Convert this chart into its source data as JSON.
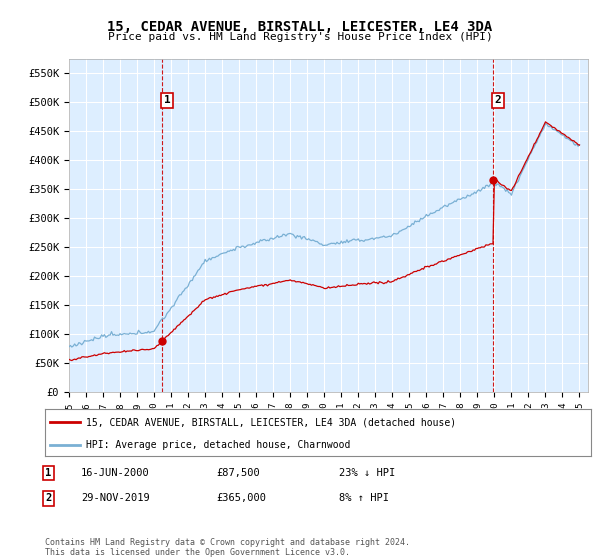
{
  "title": "15, CEDAR AVENUE, BIRSTALL, LEICESTER, LE4 3DA",
  "subtitle": "Price paid vs. HM Land Registry's House Price Index (HPI)",
  "ylim": [
    0,
    575000
  ],
  "yticks": [
    0,
    50000,
    100000,
    150000,
    200000,
    250000,
    300000,
    350000,
    400000,
    450000,
    500000,
    550000
  ],
  "ytick_labels": [
    "£0",
    "£50K",
    "£100K",
    "£150K",
    "£200K",
    "£250K",
    "£300K",
    "£350K",
    "£400K",
    "£450K",
    "£500K",
    "£550K"
  ],
  "background_color": "#ffffff",
  "plot_bg_color": "#ddeeff",
  "grid_color": "#ffffff",
  "transaction1_date": 2000.46,
  "transaction1_price": 87500,
  "transaction1_label": "1",
  "transaction2_date": 2019.92,
  "transaction2_price": 365000,
  "transaction2_label": "2",
  "legend_line1": "15, CEDAR AVENUE, BIRSTALL, LEICESTER, LE4 3DA (detached house)",
  "legend_line2": "HPI: Average price, detached house, Charnwood",
  "annotation1_num": "1",
  "annotation1_date": "16-JUN-2000",
  "annotation1_price": "£87,500",
  "annotation1_hpi": "23% ↓ HPI",
  "annotation2_num": "2",
  "annotation2_date": "29-NOV-2019",
  "annotation2_price": "£365,000",
  "annotation2_hpi": "8% ↑ HPI",
  "footer": "Contains HM Land Registry data © Crown copyright and database right 2024.\nThis data is licensed under the Open Government Licence v3.0.",
  "line_color_red": "#cc0000",
  "line_color_blue": "#7ab0d4",
  "vline_color": "#cc0000"
}
